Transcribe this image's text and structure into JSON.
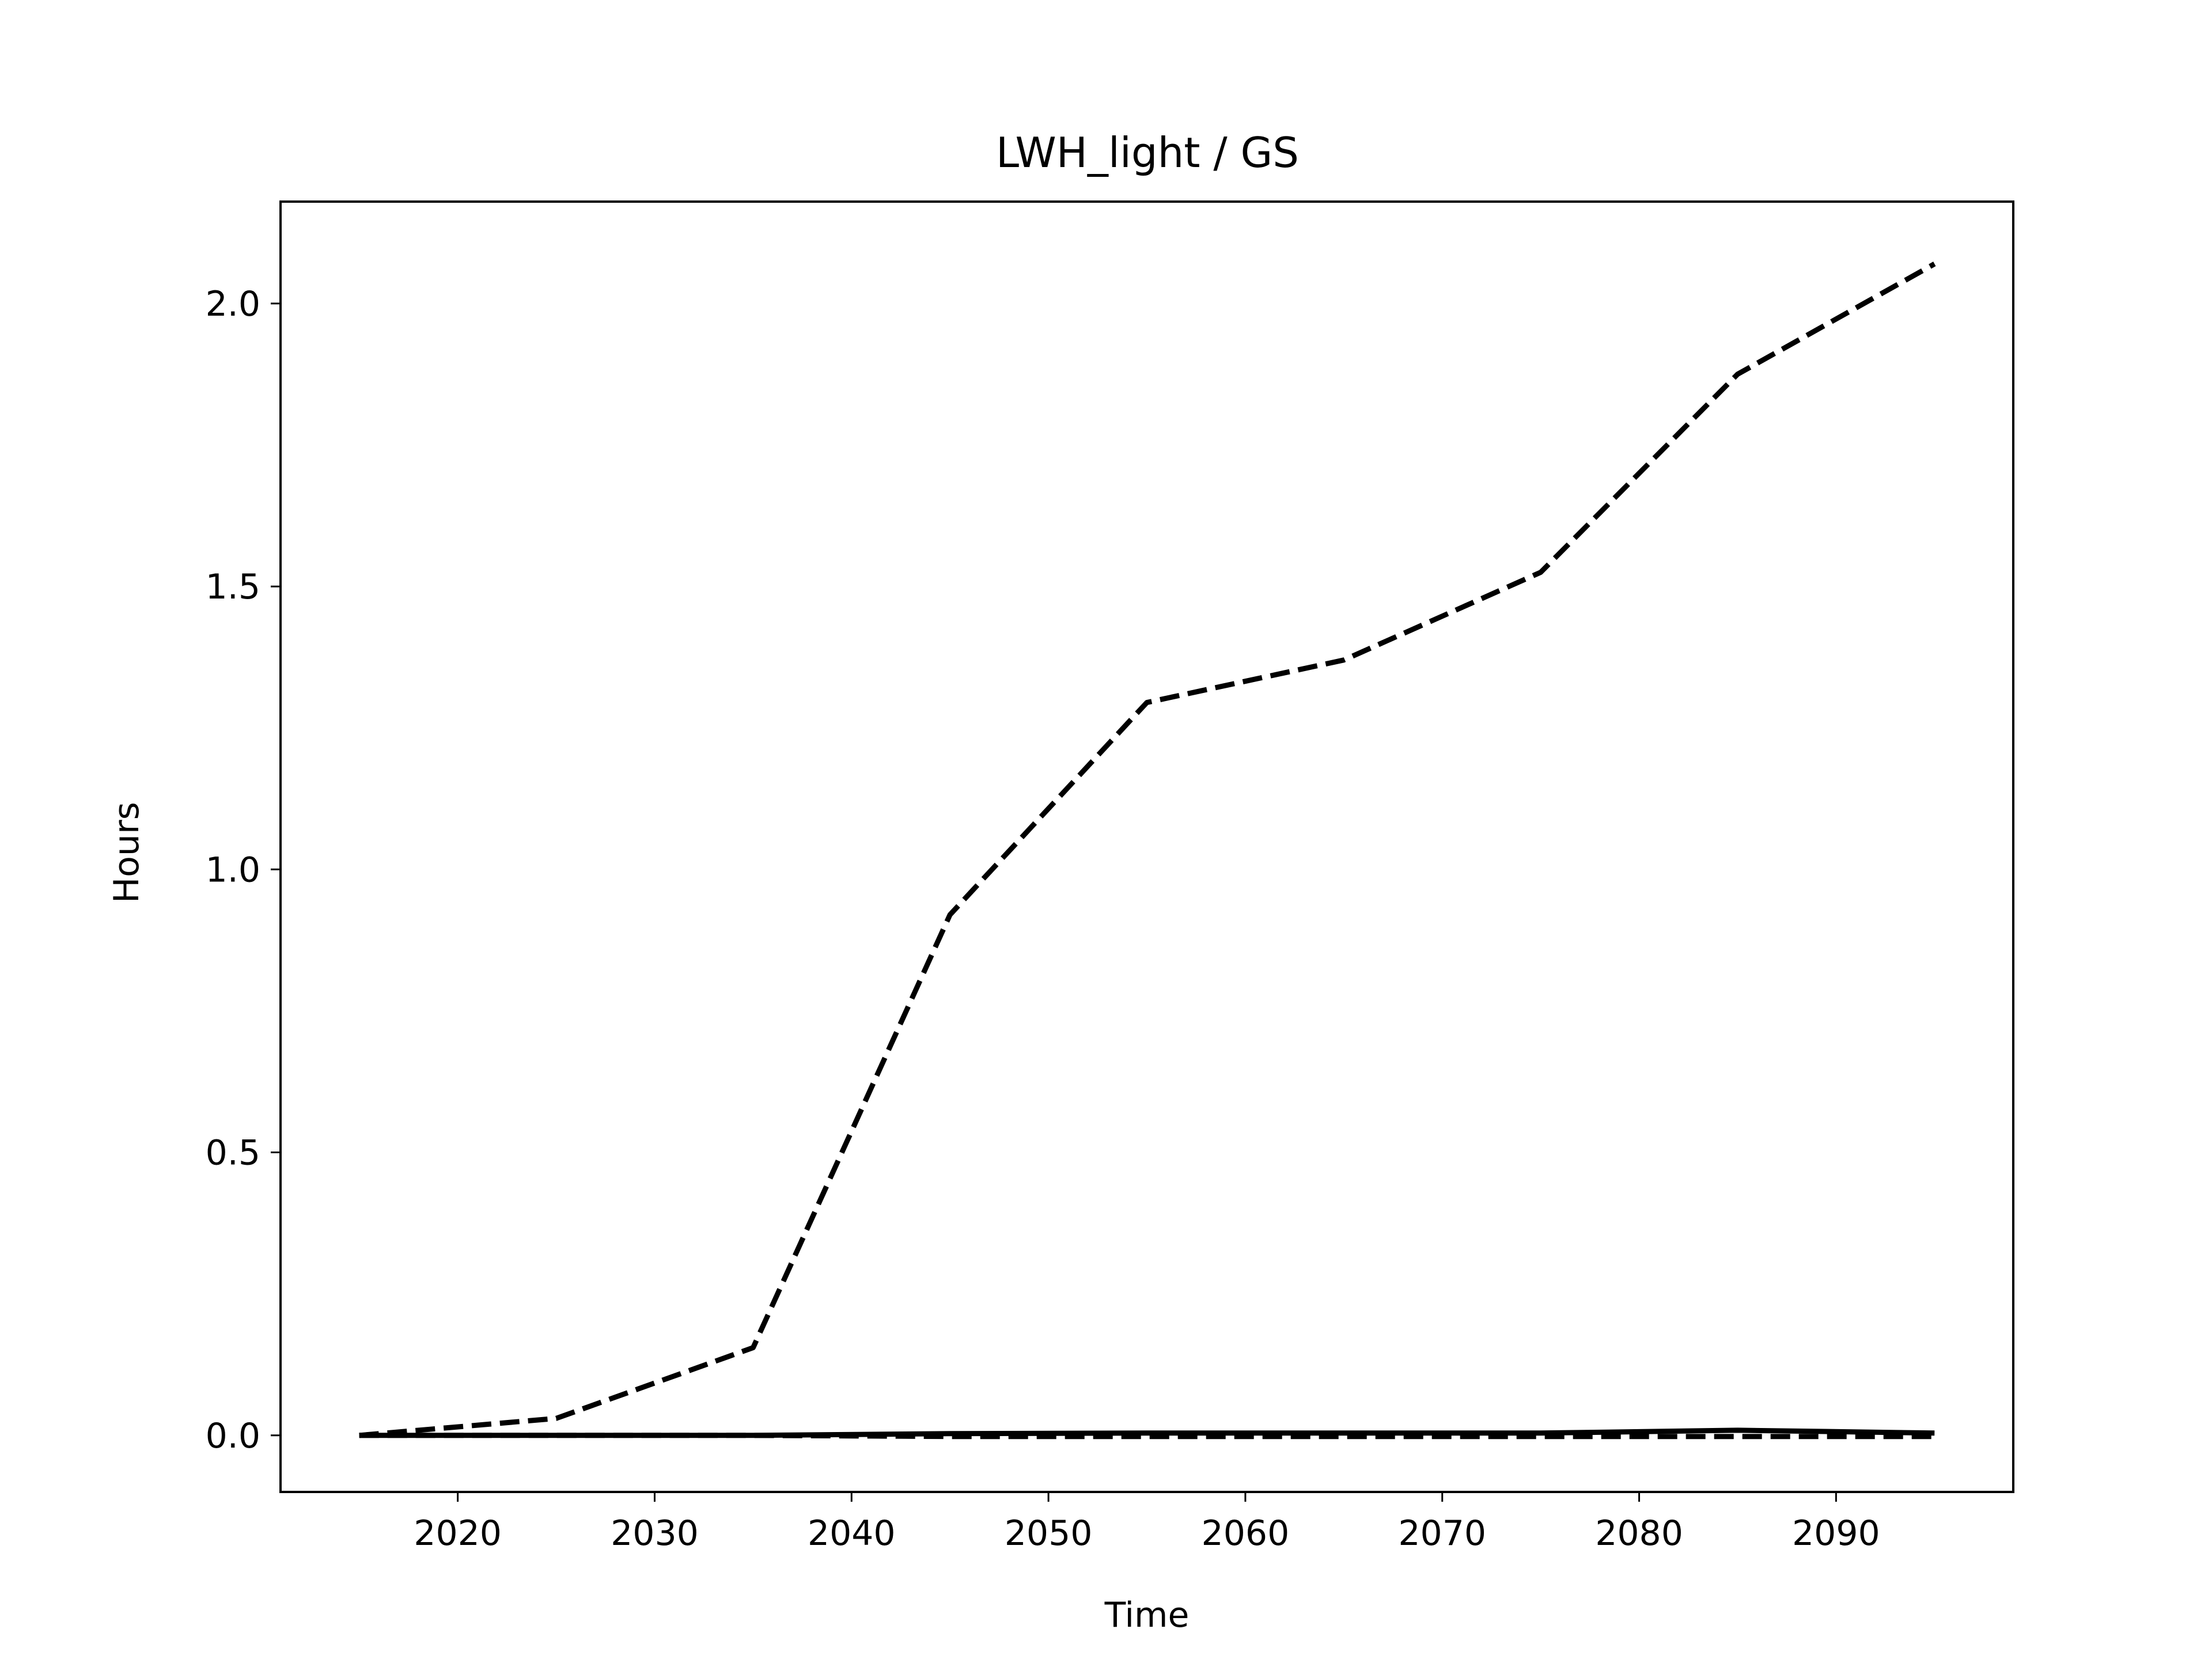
{
  "chart_data": {
    "type": "line",
    "title": "LWH_light / GS",
    "xlabel": "Time",
    "ylabel": "Hours",
    "xlim": [
      2011,
      2099
    ],
    "ylim": [
      -0.1,
      2.18
    ],
    "xticks": [
      2020,
      2030,
      2040,
      2050,
      2060,
      2070,
      2080,
      2090
    ],
    "yticks": [
      0.0,
      0.5,
      1.0,
      1.5,
      2.0
    ],
    "xtick_labels": [
      "2020",
      "2030",
      "2040",
      "2050",
      "2060",
      "2070",
      "2080",
      "2090"
    ],
    "ytick_labels": [
      "0.0",
      "0.5",
      "1.0",
      "1.5",
      "2.0"
    ],
    "grid": false,
    "x": [
      2015,
      2025,
      2035,
      2045,
      2055,
      2065,
      2075,
      2085,
      2095
    ],
    "series": [
      {
        "values": [
          0.0,
          0.03,
          0.155,
          0.92,
          1.295,
          1.37,
          1.525,
          1.875,
          2.07
        ],
        "color": "#000000",
        "linestyle": "dashed"
      },
      {
        "values": [
          0.0,
          0.0,
          0.0,
          0.003,
          0.004,
          0.004,
          0.004,
          0.009,
          0.004
        ],
        "color": "#000000",
        "linestyle": "solid"
      },
      {
        "values": [
          0.0,
          0.0,
          0.0,
          -0.002,
          -0.002,
          -0.002,
          -0.002,
          -0.002,
          -0.002
        ],
        "color": "#000000",
        "linestyle": "dashed"
      }
    ]
  }
}
